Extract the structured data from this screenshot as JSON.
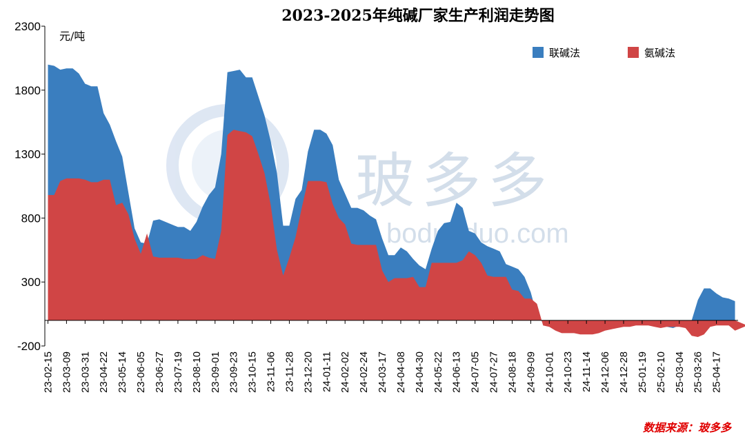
{
  "chart_data": {
    "type": "area",
    "title": "2023-2025年纯碱厂家生产利润走势图",
    "ylabel": "元/吨",
    "ylim": [
      -200,
      2300
    ],
    "yticks": [
      -200,
      300,
      800,
      1300,
      1800,
      2300
    ],
    "legend_position": "top-right",
    "x_tick_labels": [
      "23-02-15",
      "23-03-09",
      "23-03-31",
      "23-04-22",
      "23-05-14",
      "23-06-05",
      "23-06-27",
      "23-07-19",
      "23-08-10",
      "23-09-01",
      "23-09-23",
      "23-10-15",
      "23-11-06",
      "23-11-28",
      "23-12-20",
      "24-01-11",
      "24-02-02",
      "24-02-24",
      "24-03-17",
      "24-04-08",
      "24-04-30",
      "24-05-22",
      "24-06-13",
      "24-07-05",
      "24-07-27",
      "24-08-18",
      "24-09-09",
      "24-10-01",
      "24-10-23",
      "24-11-14",
      "24-12-06",
      "24-12-28",
      "25-01-19",
      "25-02-10",
      "25-03-04",
      "25-03-26",
      "25-04-17"
    ],
    "weekly_start": "23-02-15",
    "series": [
      {
        "name": "联碱法",
        "color": "#3a7ebf",
        "values": [
          2000,
          1990,
          1960,
          1970,
          1970,
          1930,
          1850,
          1830,
          1830,
          1620,
          1530,
          1400,
          1280,
          1000,
          720,
          610,
          600,
          780,
          790,
          770,
          750,
          730,
          730,
          700,
          770,
          890,
          980,
          1040,
          1300,
          1940,
          1950,
          1960,
          1900,
          1900,
          1750,
          1600,
          1400,
          1150,
          740,
          740,
          950,
          1020,
          1320,
          1490,
          1490,
          1460,
          1370,
          1100,
          990,
          880,
          880,
          860,
          820,
          790,
          640,
          510,
          510,
          570,
          540,
          480,
          430,
          400,
          560,
          700,
          760,
          770,
          920,
          880,
          700,
          680,
          610,
          580,
          560,
          540,
          440,
          420,
          400,
          340,
          220,
          40,
          -20,
          -50,
          -60,
          -70,
          -70,
          -70,
          -60,
          -50,
          -40,
          -40,
          -30,
          -20,
          -20,
          -10,
          0,
          -10,
          -20,
          -20,
          -30,
          -40,
          -50,
          -60,
          -40,
          -40,
          0,
          160,
          250,
          250,
          210,
          180,
          170,
          150
        ]
      },
      {
        "name": "氨碱法",
        "color": "#d04545",
        "values": [
          980,
          980,
          1090,
          1110,
          1110,
          1110,
          1100,
          1080,
          1080,
          1100,
          1100,
          900,
          920,
          830,
          640,
          520,
          680,
          500,
          490,
          490,
          490,
          490,
          480,
          480,
          480,
          510,
          490,
          480,
          700,
          1450,
          1490,
          1480,
          1470,
          1440,
          1300,
          1150,
          900,
          550,
          350,
          490,
          650,
          880,
          1090,
          1090,
          1090,
          1080,
          910,
          800,
          750,
          600,
          590,
          590,
          590,
          590,
          390,
          300,
          330,
          330,
          330,
          340,
          260,
          260,
          450,
          450,
          450,
          450,
          450,
          470,
          540,
          510,
          450,
          350,
          340,
          340,
          340,
          240,
          230,
          170,
          170,
          130,
          -40,
          -50,
          -80,
          -100,
          -100,
          -100,
          -110,
          -110,
          -110,
          -100,
          -80,
          -70,
          -60,
          -50,
          -50,
          -40,
          -40,
          -40,
          -50,
          -60,
          -50,
          -50,
          -50,
          -60,
          -120,
          -130,
          -110,
          -50,
          -40,
          -40,
          -40,
          -80,
          -60,
          -40
        ]
      }
    ],
    "source_note": "数据来源：玻多多",
    "watermark": {
      "text": "玻多多",
      "url": "boduoduo.com"
    }
  }
}
